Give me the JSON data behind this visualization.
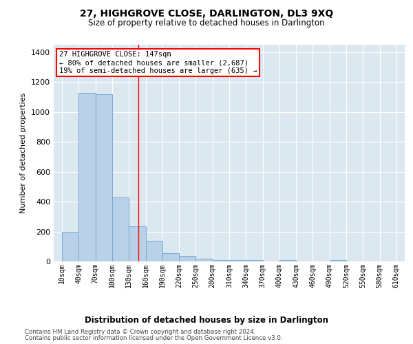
{
  "title": "27, HIGHGROVE CLOSE, DARLINGTON, DL3 9XQ",
  "subtitle": "Size of property relative to detached houses in Darlington",
  "xlabel": "Distribution of detached houses by size in Darlington",
  "ylabel": "Number of detached properties",
  "bar_color": "#b8d0e8",
  "bar_edge_color": "#7aaad0",
  "background_color": "#dce8f0",
  "grid_color": "#ffffff",
  "annotation_text": "27 HIGHGROVE CLOSE: 147sqm\n← 80% of detached houses are smaller (2,687)\n19% of semi-detached houses are larger (635) →",
  "property_line_x": 147,
  "bins": [
    10,
    40,
    70,
    100,
    130,
    160,
    190,
    220,
    250,
    280,
    310,
    340,
    370,
    400,
    430,
    460,
    490,
    520,
    550,
    580,
    610
  ],
  "counts": [
    200,
    1130,
    1120,
    430,
    235,
    140,
    55,
    35,
    20,
    10,
    10,
    10,
    0,
    10,
    0,
    0,
    10,
    0,
    0,
    0
  ],
  "ylim": [
    0,
    1450
  ],
  "yticks": [
    0,
    200,
    400,
    600,
    800,
    1000,
    1200,
    1400
  ],
  "footer1": "Contains HM Land Registry data © Crown copyright and database right 2024.",
  "footer2": "Contains public sector information licensed under the Open Government Licence v3.0."
}
